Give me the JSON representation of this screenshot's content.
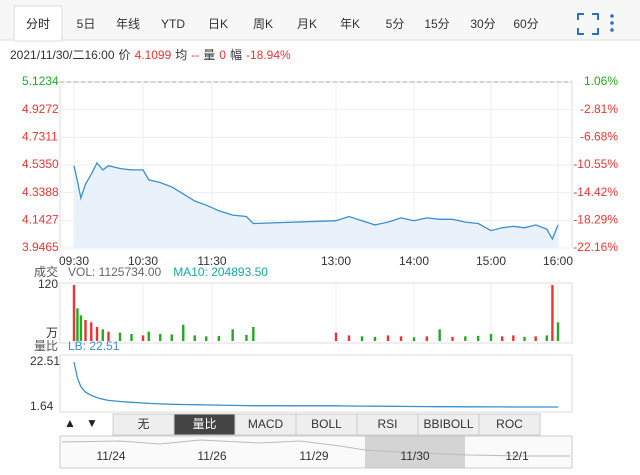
{
  "tabs": [
    "分时",
    "5日",
    "年线",
    "YTD",
    "日K",
    "周K",
    "月K",
    "年K",
    "5分",
    "15分",
    "30分",
    "60分"
  ],
  "active_tab": 0,
  "quote": {
    "datetime": "2021/11/30/二16:00",
    "price_label": "价",
    "price": 4.1099,
    "avg_label": "均",
    "avg": "--",
    "vol_label": "量",
    "vol": 0,
    "amp_label": "幅",
    "amp": "-18.94%"
  },
  "chart_data": [
    {
      "type": "line",
      "x": [
        "09:30",
        "09:33",
        "09:36",
        "09:40",
        "09:45",
        "09:50",
        "09:55",
        "10:00",
        "10:10",
        "10:20",
        "10:30",
        "10:35",
        "10:45",
        "10:55",
        "11:05",
        "11:15",
        "11:25",
        "11:35",
        "11:45",
        "11:55",
        "12:00",
        "13:00",
        "13:10",
        "13:20",
        "13:30",
        "13:40",
        "13:50",
        "14:00",
        "14:10",
        "14:20",
        "14:30",
        "14:40",
        "14:50",
        "15:00",
        "15:10",
        "15:20",
        "15:30",
        "15:40",
        "15:50",
        "15:55",
        "16:00"
      ],
      "values": [
        4.53,
        4.42,
        4.3,
        4.4,
        4.47,
        4.55,
        4.5,
        4.53,
        4.51,
        4.5,
        4.5,
        4.43,
        4.41,
        4.38,
        4.33,
        4.28,
        4.25,
        4.21,
        4.18,
        4.17,
        4.12,
        4.14,
        4.17,
        4.14,
        4.11,
        4.13,
        4.16,
        4.14,
        4.16,
        4.15,
        4.15,
        4.13,
        4.12,
        4.07,
        4.09,
        4.1,
        4.09,
        4.11,
        4.08,
        4.01,
        4.11
      ],
      "color": "#3a8fd0",
      "fill_color": "#e9f2fb",
      "ylim": [
        3.9465,
        5.1234
      ],
      "yticks": [
        5.1234,
        4.9272,
        4.7311,
        {
          "value": 4.535,
          "label": "4.5350"
        },
        4.3388,
        4.1427,
        3.9465
      ],
      "y2lim": [
        -22.16,
        1.06
      ],
      "y2ticks": [
        {
          "value": 1.06,
          "label": "1.06%"
        },
        {
          "value": -2.81,
          "label": "-2.81%"
        },
        {
          "value": -6.68,
          "label": "-6.68%"
        },
        {
          "value": -10.55,
          "label": "-10.55%"
        },
        {
          "value": -14.42,
          "label": "-14.42%"
        },
        {
          "value": -18.29,
          "label": "-18.29%"
        },
        {
          "value": -22.16,
          "label": "-22.16%"
        }
      ],
      "xticks": [
        "09:30",
        "10:30",
        "11:30",
        "13:00",
        "14:00",
        "15:00",
        "16:00"
      ],
      "grid": true
    },
    {
      "type": "bar",
      "ylabel": "成交",
      "legend": [
        "VOL: 1125734.00",
        "MA10: 204893.50"
      ],
      "unit": "万",
      "x": [
        "09:30",
        "09:33",
        "09:36",
        "09:40",
        "09:45",
        "09:50",
        "09:55",
        "10:00",
        "10:10",
        "10:20",
        "10:30",
        "10:35",
        "10:45",
        "10:55",
        "11:05",
        "11:15",
        "11:25",
        "11:35",
        "11:45",
        "11:55",
        "12:00",
        "13:00",
        "13:10",
        "13:20",
        "13:30",
        "13:40",
        "13:50",
        "14:00",
        "14:10",
        "14:20",
        "14:30",
        "14:40",
        "14:50",
        "15:00",
        "15:10",
        "15:20",
        "15:30",
        "15:40",
        "15:50",
        "15:55",
        "16:00"
      ],
      "values": [
        120,
        70,
        55,
        45,
        40,
        30,
        25,
        20,
        18,
        15,
        12,
        20,
        15,
        14,
        35,
        12,
        10,
        11,
        25,
        13,
        30,
        18,
        12,
        10,
        9,
        12,
        10,
        8,
        10,
        25,
        9,
        10,
        11,
        15,
        10,
        12,
        9,
        10,
        12,
        120,
        40
      ],
      "colors": [
        "#e33",
        "#2a2",
        "#2a2",
        "#e33",
        "#e33",
        "#e33",
        "#2a2",
        "#e33",
        "#2a2",
        "#2a2",
        "#e33",
        "#2a2",
        "#2a2",
        "#2a2",
        "#2a2",
        "#2a2",
        "#2a2",
        "#2a2",
        "#2a2",
        "#2a2",
        "#2a2",
        "#e33",
        "#e33",
        "#2a2",
        "#2a2",
        "#e33",
        "#e33",
        "#2a2",
        "#e33",
        "#2a2",
        "#e33",
        "#2a2",
        "#2a2",
        "#2a2",
        "#e33",
        "#e33",
        "#2a2",
        "#e33",
        "#2a2",
        "#e33",
        "#2a2"
      ],
      "ylim": [
        0,
        120
      ],
      "yticks": [
        120
      ]
    },
    {
      "type": "line",
      "ylabel": "量比",
      "legend": [
        "LB: 22.51"
      ],
      "color": "#3a8fd0",
      "x": [
        "09:30",
        "09:33",
        "09:36",
        "09:40",
        "09:45",
        "09:50",
        "09:55",
        "10:00",
        "10:10",
        "10:20",
        "10:30",
        "10:35",
        "10:45",
        "10:55",
        "11:05",
        "11:15",
        "11:25",
        "11:35",
        "11:45",
        "11:55",
        "12:00",
        "13:00",
        "13:10",
        "13:20",
        "13:30",
        "13:40",
        "13:50",
        "14:00",
        "14:10",
        "14:20",
        "14:30",
        "14:40",
        "14:50",
        "15:00",
        "15:10",
        "15:20",
        "15:30",
        "15:40",
        "15:50",
        "15:55",
        "16:00"
      ],
      "values": [
        22.51,
        15,
        11,
        8.5,
        7,
        6,
        5.2,
        4.7,
        4.2,
        3.8,
        3.5,
        3.3,
        3.1,
        2.9,
        2.8,
        2.7,
        2.6,
        2.5,
        2.4,
        2.3,
        2.25,
        2.2,
        2.1,
        2.05,
        2.0,
        1.95,
        1.9,
        1.86,
        1.82,
        1.79,
        1.76,
        1.73,
        1.71,
        1.69,
        1.67,
        1.65,
        1.64,
        1.63,
        1.62,
        1.62,
        1.63
      ],
      "ylim": [
        1.64,
        22.51
      ],
      "yticks": [
        22.51,
        1.64
      ]
    }
  ],
  "indicator_tabs": [
    "无",
    "量比",
    "MACD",
    "BOLL",
    "RSI",
    "BBIBOLL",
    "ROC"
  ],
  "active_indicator": 1,
  "nav_dates": [
    "11/24",
    "11/26",
    "11/29",
    "11/30",
    "12/1"
  ],
  "nav_selected": 3
}
